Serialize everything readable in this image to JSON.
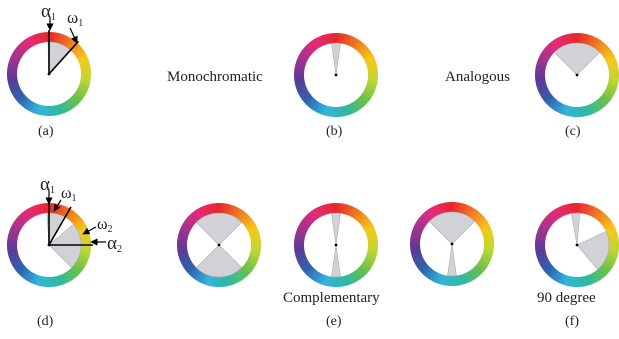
{
  "panels": [
    {
      "id": "a",
      "caption": "(a)",
      "sectors": [
        [
          -2,
          42
        ]
      ]
    },
    {
      "id": "b",
      "caption": "(b)",
      "sectors": [
        [
          -8,
          8
        ]
      ]
    },
    {
      "id": "c",
      "caption": "(c)",
      "sectors": [
        [
          -45,
          45
        ]
      ]
    },
    {
      "id": "d",
      "caption": "(d)",
      "sectors": [
        [
          -4,
          30
        ],
        [
          50,
          135
        ]
      ]
    },
    {
      "id": "e1",
      "caption": "",
      "sectors": [
        [
          -45,
          45
        ],
        [
          135,
          225
        ]
      ]
    },
    {
      "id": "e2",
      "caption": "(e)",
      "sectors": [
        [
          -8,
          8
        ],
        [
          172,
          188
        ]
      ]
    },
    {
      "id": "e3",
      "caption": "",
      "sectors": [
        [
          -45,
          45
        ],
        [
          172,
          188
        ]
      ]
    },
    {
      "id": "f",
      "caption": "(f)",
      "sectors": [
        [
          -10,
          5
        ],
        [
          65,
          140
        ]
      ]
    }
  ],
  "labels": {
    "monochromatic": "Monochromatic",
    "analogous": "Analogous",
    "complementary": "Complementary",
    "ninety": "90 degree"
  },
  "annotations": {
    "alpha1": "α",
    "alpha1_sub": "1",
    "omega1": "ω",
    "omega1_sub": "1",
    "alpha2": "α",
    "alpha2_sub": "2",
    "omega2": "ω",
    "omega2_sub": "2"
  },
  "colors": {
    "sector_fill": "#d0d2d6",
    "sector_stroke": "#a8abb0",
    "wheel_hues": [
      "#e8262c",
      "#f07a22",
      "#f6c81a",
      "#bfd734",
      "#6cc04a",
      "#2fb9a0",
      "#33b4dc",
      "#2f63ad",
      "#5a3a96",
      "#a1338f",
      "#e52a7a"
    ]
  }
}
